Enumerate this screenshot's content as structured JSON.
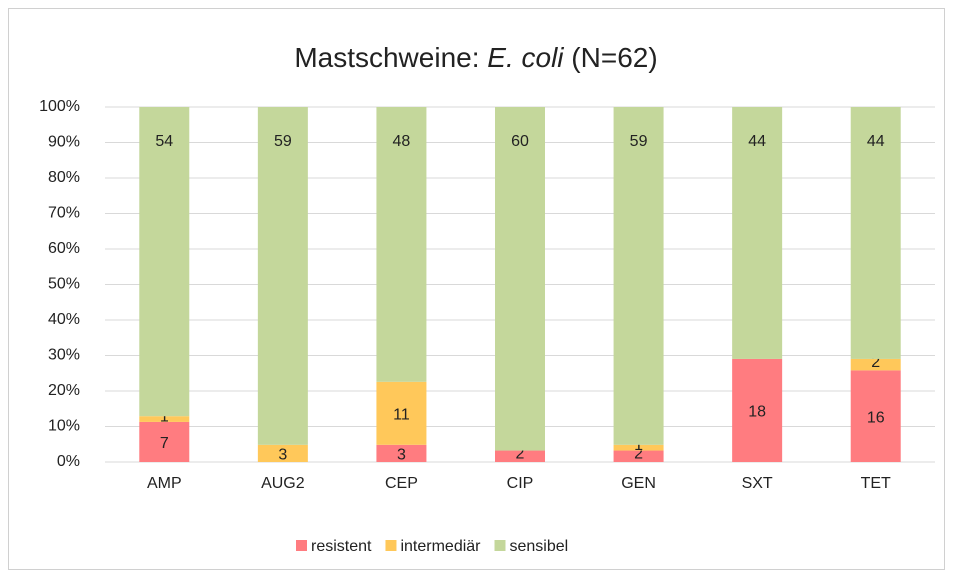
{
  "chart_data": {
    "type": "bar",
    "stack": "percent",
    "title_parts": [
      {
        "text": "Mastschweine: ",
        "italic": false
      },
      {
        "text": "E. coli",
        "italic": true
      },
      {
        "text": " (N=62)",
        "italic": false
      }
    ],
    "categories": [
      "AMP",
      "AUG2",
      "CEP",
      "CIP",
      "GEN",
      "SXT",
      "TET"
    ],
    "series": [
      {
        "name": "resistent",
        "color": "#ff7c80",
        "values": [
          7,
          0,
          3,
          2,
          2,
          18,
          16
        ]
      },
      {
        "name": "intermediär",
        "color": "#ffc85a",
        "values": [
          1,
          3,
          11,
          0,
          1,
          0,
          2
        ]
      },
      {
        "name": "sensibel",
        "color": "#c4d79b",
        "values": [
          54,
          59,
          48,
          60,
          59,
          44,
          44
        ]
      }
    ],
    "ylim": [
      0,
      100
    ],
    "yticks": [
      {
        "value": 0,
        "label": "0%"
      },
      {
        "value": 10,
        "label": "10%"
      },
      {
        "value": 20,
        "label": "20%"
      },
      {
        "value": 30,
        "label": "30%"
      },
      {
        "value": 40,
        "label": "40%"
      },
      {
        "value": 50,
        "label": "50%"
      },
      {
        "value": 60,
        "label": "60%"
      },
      {
        "value": 70,
        "label": "70%"
      },
      {
        "value": 80,
        "label": "80%"
      },
      {
        "value": 90,
        "label": "90%"
      },
      {
        "value": 100,
        "label": "100%"
      }
    ],
    "grid": true,
    "legend": "bottom"
  }
}
